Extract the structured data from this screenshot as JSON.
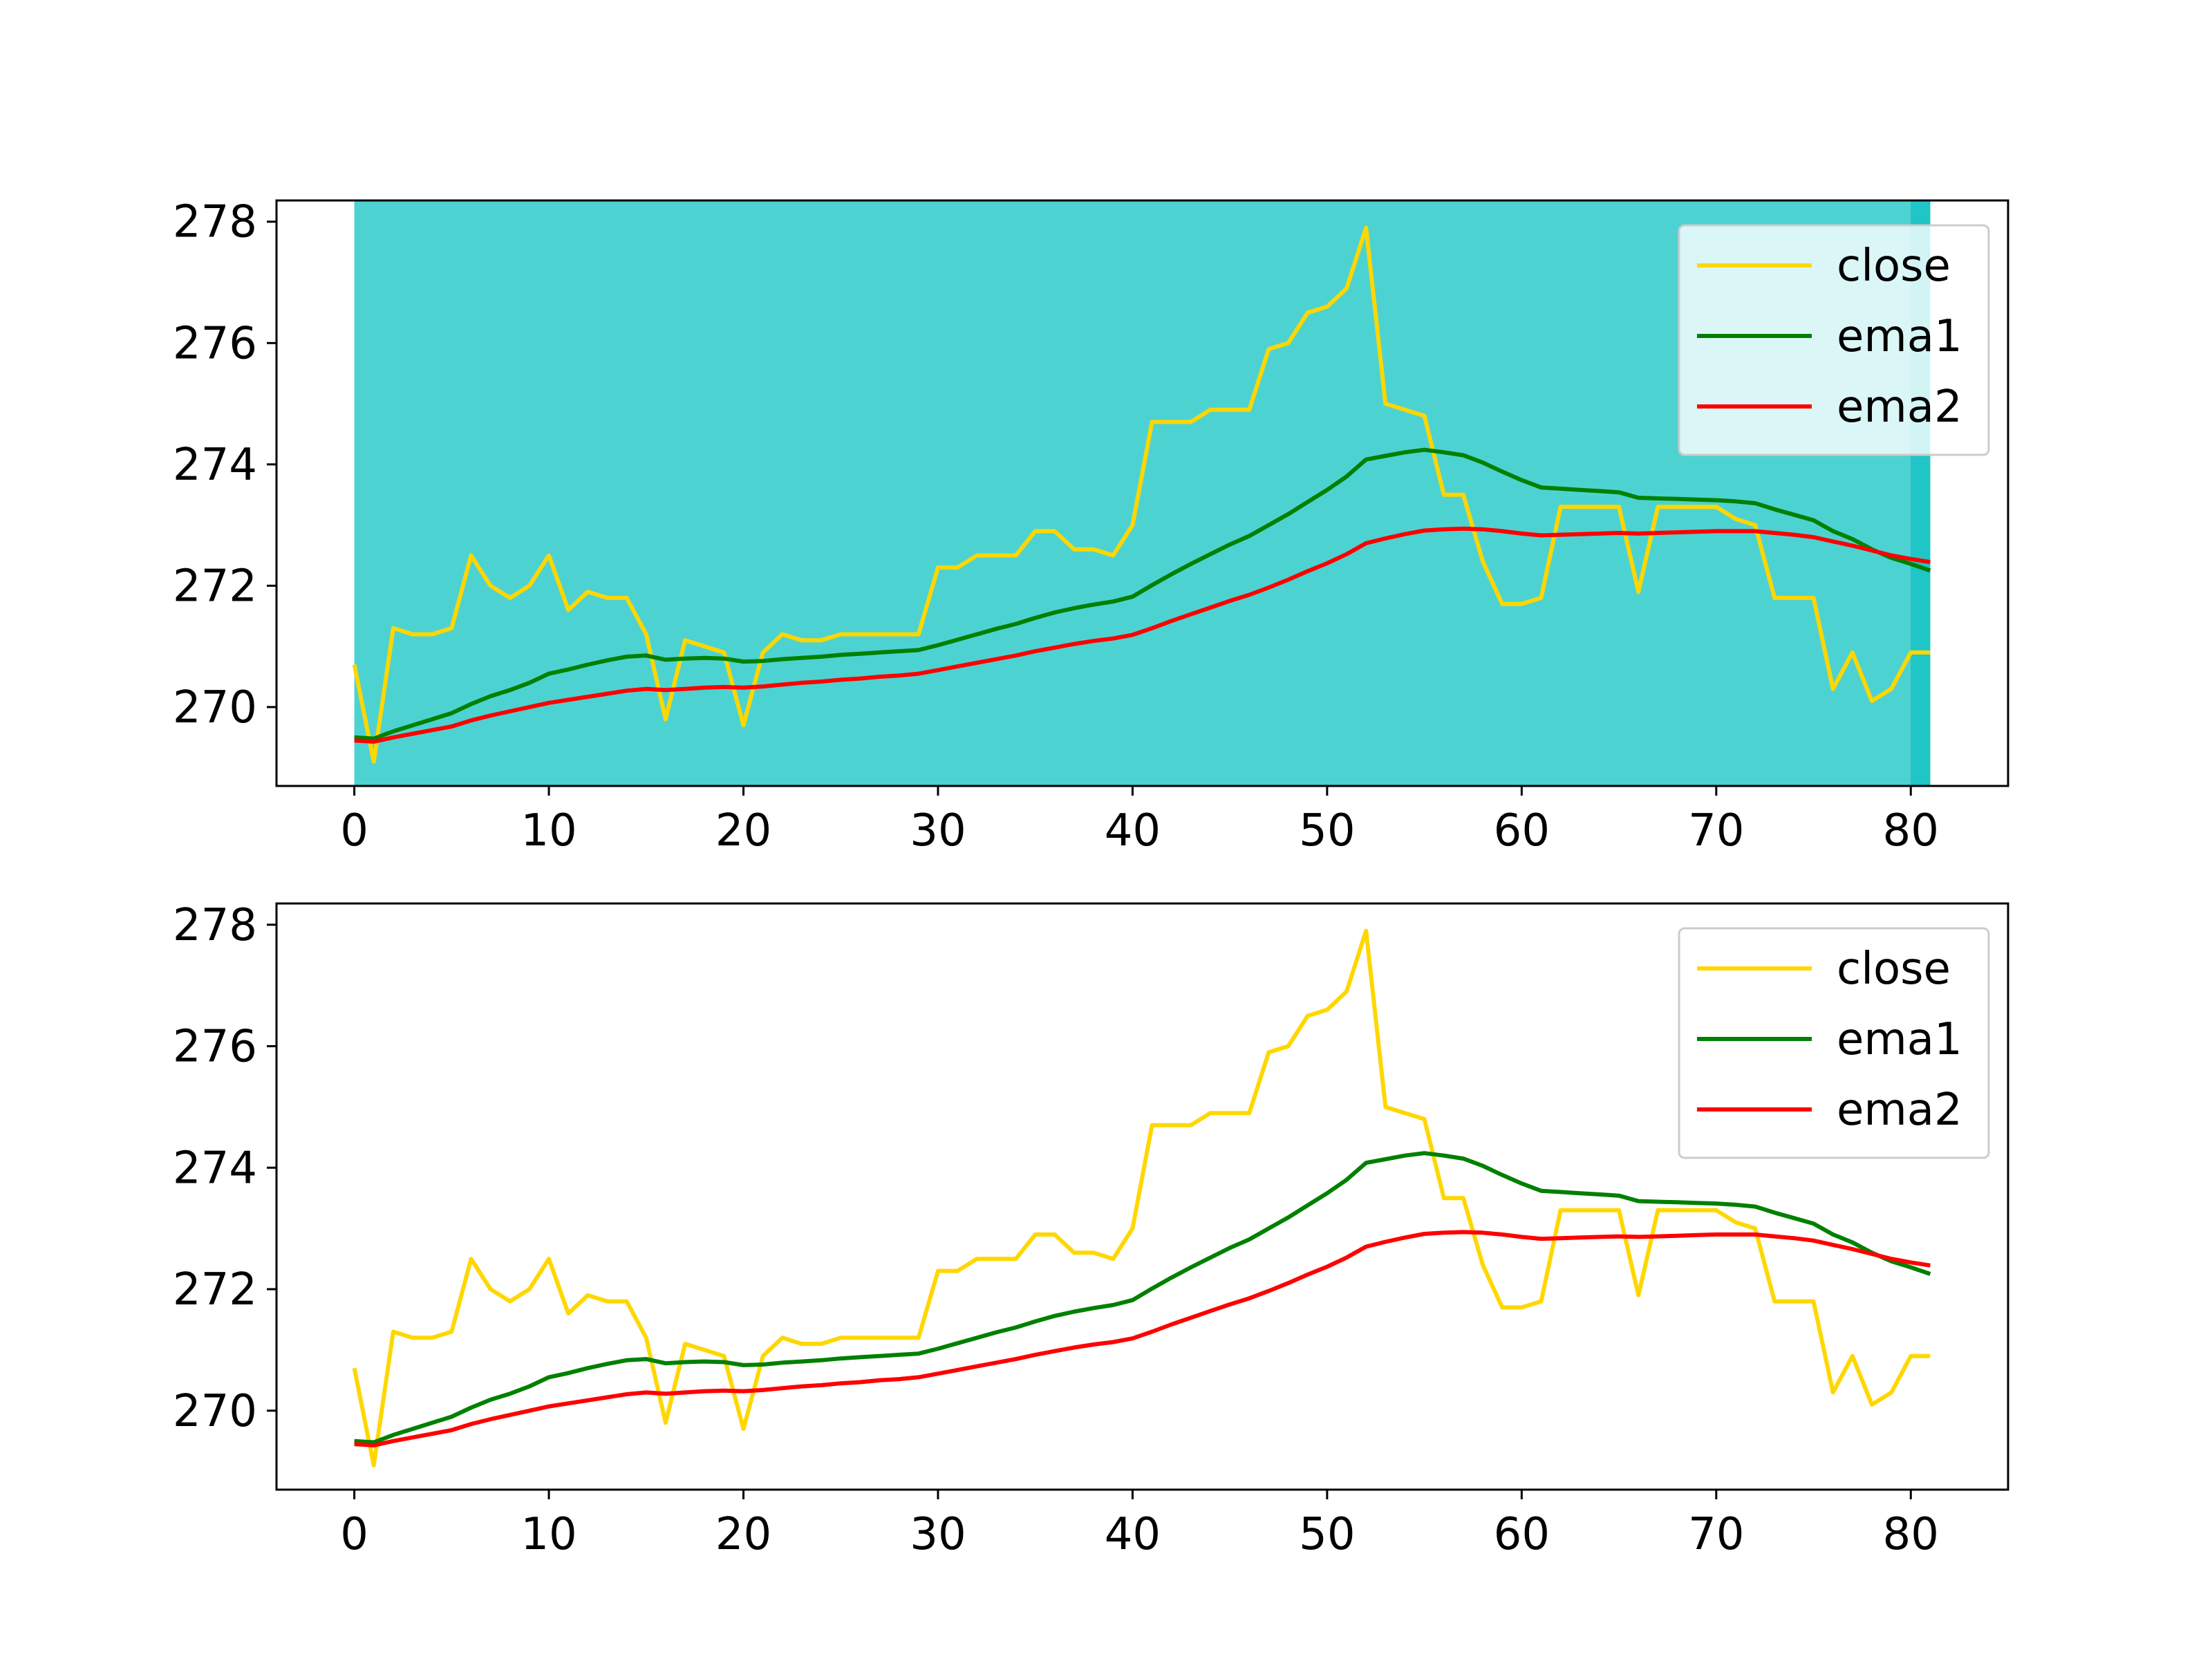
{
  "chart_data": [
    {
      "type": "line",
      "title": "",
      "xlabel": "",
      "ylabel": "",
      "xlim": [
        -4,
        85
      ],
      "ylim": [
        268.7,
        278.35
      ],
      "xticks": [
        0,
        10,
        20,
        30,
        40,
        50,
        60,
        70,
        80
      ],
      "yticks": [
        270,
        272,
        274,
        276,
        278
      ],
      "grid": false,
      "legend_position": "top-right",
      "shaded_regions": [
        {
          "x_start": 0,
          "x_end": 81,
          "color": "#4dd2d2"
        },
        {
          "x_start": 80,
          "x_end": 81,
          "color": "#20c5c5"
        }
      ],
      "series": [
        {
          "name": "close",
          "color": "#ffd700",
          "x": [
            0,
            1,
            2,
            3,
            4,
            5,
            6,
            7,
            8,
            9,
            10,
            11,
            12,
            13,
            14,
            15,
            16,
            17,
            18,
            19,
            20,
            21,
            22,
            23,
            24,
            25,
            26,
            27,
            28,
            29,
            30,
            31,
            32,
            33,
            34,
            35,
            36,
            37,
            38,
            39,
            40,
            41,
            42,
            43,
            44,
            45,
            46,
            47,
            48,
            49,
            50,
            51,
            52,
            53,
            54,
            55,
            56,
            57,
            58,
            59,
            60,
            61,
            62,
            63,
            64,
            65,
            66,
            67,
            68,
            69,
            70,
            71,
            72,
            73,
            74,
            75,
            76,
            77,
            78,
            79,
            80,
            81
          ],
          "values": [
            270.7,
            269.1,
            271.3,
            271.2,
            271.2,
            271.3,
            272.5,
            272.0,
            271.8,
            272.0,
            272.5,
            271.6,
            271.9,
            271.8,
            271.8,
            271.2,
            269.8,
            271.1,
            271.0,
            270.9,
            269.7,
            270.9,
            271.2,
            271.1,
            271.1,
            271.2,
            271.2,
            271.2,
            271.2,
            271.2,
            272.3,
            272.3,
            272.5,
            272.5,
            272.5,
            272.9,
            272.9,
            272.6,
            272.6,
            272.5,
            273.0,
            274.7,
            274.7,
            274.7,
            274.9,
            274.9,
            274.9,
            275.9,
            276.0,
            276.5,
            276.6,
            276.9,
            277.9,
            275.0,
            274.9,
            274.8,
            273.5,
            273.5,
            272.4,
            271.7,
            271.7,
            271.8,
            273.3,
            273.3,
            273.3,
            273.3,
            271.9,
            273.3,
            273.3,
            273.3,
            273.3,
            273.1,
            273.0,
            271.8,
            271.8,
            271.8,
            270.3,
            270.9,
            270.1,
            270.3,
            270.9,
            270.9
          ]
        },
        {
          "name": "ema1",
          "color": "#008000",
          "x": [
            0,
            1,
            2,
            3,
            4,
            5,
            6,
            7,
            8,
            9,
            10,
            11,
            12,
            13,
            14,
            15,
            16,
            17,
            18,
            19,
            20,
            21,
            22,
            23,
            24,
            25,
            26,
            27,
            28,
            29,
            30,
            31,
            32,
            33,
            34,
            35,
            36,
            37,
            38,
            39,
            40,
            41,
            42,
            43,
            44,
            45,
            46,
            47,
            48,
            49,
            50,
            51,
            52,
            53,
            54,
            55,
            56,
            57,
            58,
            59,
            60,
            61,
            62,
            63,
            64,
            65,
            66,
            67,
            68,
            69,
            70,
            71,
            72,
            73,
            74,
            75,
            76,
            77,
            78,
            79,
            80,
            81
          ],
          "values": [
            269.5,
            269.48,
            269.6,
            269.7,
            269.8,
            269.9,
            270.05,
            270.18,
            270.28,
            270.4,
            270.55,
            270.62,
            270.7,
            270.77,
            270.83,
            270.85,
            270.78,
            270.8,
            270.81,
            270.8,
            270.75,
            270.76,
            270.79,
            270.81,
            270.83,
            270.86,
            270.88,
            270.9,
            270.92,
            270.94,
            271.02,
            271.11,
            271.2,
            271.29,
            271.37,
            271.47,
            271.56,
            271.63,
            271.69,
            271.74,
            271.82,
            272.01,
            272.19,
            272.36,
            272.52,
            272.68,
            272.82,
            273.0,
            273.18,
            273.38,
            273.58,
            273.8,
            274.08,
            274.14,
            274.2,
            274.24,
            274.2,
            274.15,
            274.03,
            273.88,
            273.74,
            273.62,
            273.6,
            273.58,
            273.56,
            273.54,
            273.45,
            273.44,
            273.43,
            273.42,
            273.41,
            273.39,
            273.36,
            273.26,
            273.17,
            273.08,
            272.9,
            272.77,
            272.6,
            272.46,
            272.36,
            272.25
          ]
        },
        {
          "name": "ema2",
          "color": "#ff0000",
          "x": [
            0,
            1,
            2,
            3,
            4,
            5,
            6,
            7,
            8,
            9,
            10,
            11,
            12,
            13,
            14,
            15,
            16,
            17,
            18,
            19,
            20,
            21,
            22,
            23,
            24,
            25,
            26,
            27,
            28,
            29,
            30,
            31,
            32,
            33,
            34,
            35,
            36,
            37,
            38,
            39,
            40,
            41,
            42,
            43,
            44,
            45,
            46,
            47,
            48,
            49,
            50,
            51,
            52,
            53,
            54,
            55,
            56,
            57,
            58,
            59,
            60,
            61,
            62,
            63,
            64,
            65,
            66,
            67,
            68,
            69,
            70,
            71,
            72,
            73,
            74,
            75,
            76,
            77,
            78,
            79,
            80,
            81
          ],
          "values": [
            269.45,
            269.43,
            269.5,
            269.56,
            269.62,
            269.68,
            269.78,
            269.86,
            269.93,
            270.0,
            270.07,
            270.12,
            270.17,
            270.22,
            270.27,
            270.3,
            270.28,
            270.3,
            270.32,
            270.33,
            270.32,
            270.34,
            270.37,
            270.4,
            270.42,
            270.45,
            270.47,
            270.5,
            270.52,
            270.55,
            270.61,
            270.67,
            270.73,
            270.79,
            270.85,
            270.92,
            270.98,
            271.04,
            271.09,
            271.13,
            271.19,
            271.3,
            271.42,
            271.53,
            271.64,
            271.75,
            271.85,
            271.97,
            272.1,
            272.24,
            272.37,
            272.52,
            272.7,
            272.78,
            272.85,
            272.91,
            272.93,
            272.94,
            272.93,
            272.9,
            272.86,
            272.83,
            272.84,
            272.85,
            272.86,
            272.87,
            272.86,
            272.87,
            272.88,
            272.89,
            272.9,
            272.9,
            272.9,
            272.87,
            272.84,
            272.8,
            272.73,
            272.66,
            272.58,
            272.5,
            272.44,
            272.39
          ]
        }
      ]
    },
    {
      "type": "line",
      "title": "",
      "xlabel": "",
      "ylabel": "",
      "xlim": [
        -4,
        85
      ],
      "ylim": [
        268.7,
        278.35
      ],
      "xticks": [
        0,
        10,
        20,
        30,
        40,
        50,
        60,
        70,
        80
      ],
      "yticks": [
        270,
        272,
        274,
        276,
        278
      ],
      "grid": false,
      "legend_position": "top-right",
      "shaded_regions": [],
      "series": [
        {
          "name": "close",
          "color": "#ffd700",
          "x": [
            0,
            1,
            2,
            3,
            4,
            5,
            6,
            7,
            8,
            9,
            10,
            11,
            12,
            13,
            14,
            15,
            16,
            17,
            18,
            19,
            20,
            21,
            22,
            23,
            24,
            25,
            26,
            27,
            28,
            29,
            30,
            31,
            32,
            33,
            34,
            35,
            36,
            37,
            38,
            39,
            40,
            41,
            42,
            43,
            44,
            45,
            46,
            47,
            48,
            49,
            50,
            51,
            52,
            53,
            54,
            55,
            56,
            57,
            58,
            59,
            60,
            61,
            62,
            63,
            64,
            65,
            66,
            67,
            68,
            69,
            70,
            71,
            72,
            73,
            74,
            75,
            76,
            77,
            78,
            79,
            80,
            81
          ],
          "values": [
            270.7,
            269.1,
            271.3,
            271.2,
            271.2,
            271.3,
            272.5,
            272.0,
            271.8,
            272.0,
            272.5,
            271.6,
            271.9,
            271.8,
            271.8,
            271.2,
            269.8,
            271.1,
            271.0,
            270.9,
            269.7,
            270.9,
            271.2,
            271.1,
            271.1,
            271.2,
            271.2,
            271.2,
            271.2,
            271.2,
            272.3,
            272.3,
            272.5,
            272.5,
            272.5,
            272.9,
            272.9,
            272.6,
            272.6,
            272.5,
            273.0,
            274.7,
            274.7,
            274.7,
            274.9,
            274.9,
            274.9,
            275.9,
            276.0,
            276.5,
            276.6,
            276.9,
            277.9,
            275.0,
            274.9,
            274.8,
            273.5,
            273.5,
            272.4,
            271.7,
            271.7,
            271.8,
            273.3,
            273.3,
            273.3,
            273.3,
            271.9,
            273.3,
            273.3,
            273.3,
            273.3,
            273.1,
            273.0,
            271.8,
            271.8,
            271.8,
            270.3,
            270.9,
            270.1,
            270.3,
            270.9,
            270.9
          ]
        },
        {
          "name": "ema1",
          "color": "#008000",
          "x": [
            0,
            1,
            2,
            3,
            4,
            5,
            6,
            7,
            8,
            9,
            10,
            11,
            12,
            13,
            14,
            15,
            16,
            17,
            18,
            19,
            20,
            21,
            22,
            23,
            24,
            25,
            26,
            27,
            28,
            29,
            30,
            31,
            32,
            33,
            34,
            35,
            36,
            37,
            38,
            39,
            40,
            41,
            42,
            43,
            44,
            45,
            46,
            47,
            48,
            49,
            50,
            51,
            52,
            53,
            54,
            55,
            56,
            57,
            58,
            59,
            60,
            61,
            62,
            63,
            64,
            65,
            66,
            67,
            68,
            69,
            70,
            71,
            72,
            73,
            74,
            75,
            76,
            77,
            78,
            79,
            80,
            81
          ],
          "values": [
            269.5,
            269.48,
            269.6,
            269.7,
            269.8,
            269.9,
            270.05,
            270.18,
            270.28,
            270.4,
            270.55,
            270.62,
            270.7,
            270.77,
            270.83,
            270.85,
            270.78,
            270.8,
            270.81,
            270.8,
            270.75,
            270.76,
            270.79,
            270.81,
            270.83,
            270.86,
            270.88,
            270.9,
            270.92,
            270.94,
            271.02,
            271.11,
            271.2,
            271.29,
            271.37,
            271.47,
            271.56,
            271.63,
            271.69,
            271.74,
            271.82,
            272.01,
            272.19,
            272.36,
            272.52,
            272.68,
            272.82,
            273.0,
            273.18,
            273.38,
            273.58,
            273.8,
            274.08,
            274.14,
            274.2,
            274.24,
            274.2,
            274.15,
            274.03,
            273.88,
            273.74,
            273.62,
            273.6,
            273.58,
            273.56,
            273.54,
            273.45,
            273.44,
            273.43,
            273.42,
            273.41,
            273.39,
            273.36,
            273.26,
            273.17,
            273.08,
            272.9,
            272.77,
            272.6,
            272.46,
            272.36,
            272.25
          ]
        },
        {
          "name": "ema2",
          "color": "#ff0000",
          "x": [
            0,
            1,
            2,
            3,
            4,
            5,
            6,
            7,
            8,
            9,
            10,
            11,
            12,
            13,
            14,
            15,
            16,
            17,
            18,
            19,
            20,
            21,
            22,
            23,
            24,
            25,
            26,
            27,
            28,
            29,
            30,
            31,
            32,
            33,
            34,
            35,
            36,
            37,
            38,
            39,
            40,
            41,
            42,
            43,
            44,
            45,
            46,
            47,
            48,
            49,
            50,
            51,
            52,
            53,
            54,
            55,
            56,
            57,
            58,
            59,
            60,
            61,
            62,
            63,
            64,
            65,
            66,
            67,
            68,
            69,
            70,
            71,
            72,
            73,
            74,
            75,
            76,
            77,
            78,
            79,
            80,
            81
          ],
          "values": [
            269.45,
            269.43,
            269.5,
            269.56,
            269.62,
            269.68,
            269.78,
            269.86,
            269.93,
            270.0,
            270.07,
            270.12,
            270.17,
            270.22,
            270.27,
            270.3,
            270.28,
            270.3,
            270.32,
            270.33,
            270.32,
            270.34,
            270.37,
            270.4,
            270.42,
            270.45,
            270.47,
            270.5,
            270.52,
            270.55,
            270.61,
            270.67,
            270.73,
            270.79,
            270.85,
            270.92,
            270.98,
            271.04,
            271.09,
            271.13,
            271.19,
            271.3,
            271.42,
            271.53,
            271.64,
            271.75,
            271.85,
            271.97,
            272.1,
            272.24,
            272.37,
            272.52,
            272.7,
            272.78,
            272.85,
            272.91,
            272.93,
            272.94,
            272.93,
            272.9,
            272.86,
            272.83,
            272.84,
            272.85,
            272.86,
            272.87,
            272.86,
            272.87,
            272.88,
            272.89,
            272.9,
            272.9,
            272.9,
            272.87,
            272.84,
            272.8,
            272.73,
            272.66,
            272.58,
            272.5,
            272.44,
            272.39
          ]
        }
      ]
    }
  ]
}
